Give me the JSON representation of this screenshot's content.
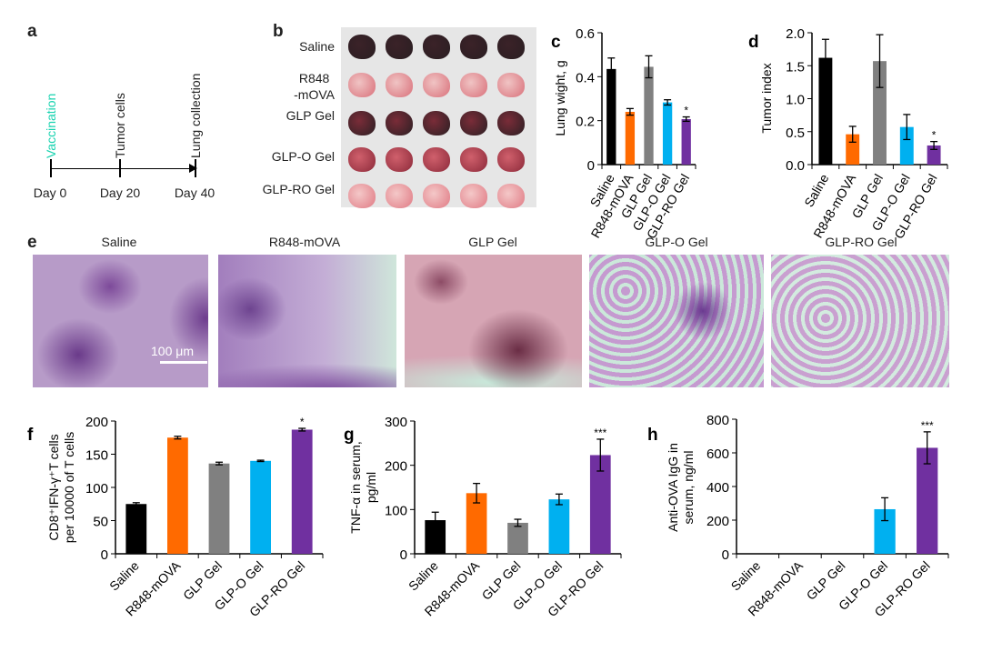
{
  "panels": {
    "a": {
      "letter": "a",
      "events": [
        "Vaccination",
        "Tumor cells",
        "Lung collection"
      ],
      "days": [
        "Day 0",
        "Day 20",
        "Day 40"
      ],
      "vaccination_color": "#19d3b0"
    },
    "b": {
      "letter": "b",
      "rows": [
        "Saline",
        "R848\n-mOVA",
        "GLP Gel",
        "GLP-O Gel",
        "GLP-RO Gel"
      ]
    },
    "e": {
      "letter": "e",
      "titles": [
        "Saline",
        "R848-mOVA",
        "GLP Gel",
        "GLP-O Gel",
        "GLP-RO Gel"
      ],
      "scale_bar": "100 μm"
    }
  },
  "colors": [
    "#000000",
    "#ff6a00",
    "#808080",
    "#00b0f0",
    "#7030a0"
  ],
  "chart_data": [
    {
      "id": "c",
      "letter": "c",
      "type": "bar",
      "categories": [
        "Saline",
        "R848-mOVA",
        "GLP Gel",
        "GLP-O Gel",
        "GLP-RO Gel"
      ],
      "values": [
        0.435,
        0.24,
        0.445,
        0.283,
        0.207
      ],
      "errors": [
        0.05,
        0.015,
        0.05,
        0.012,
        0.01
      ],
      "annotations": [
        "",
        "",
        "",
        "",
        "*"
      ],
      "ylabel": "Lung wight, g",
      "ylim": [
        0,
        0.6
      ],
      "yticks": [
        "0",
        "0.2",
        "0.4",
        "0.6"
      ],
      "ytick_values": [
        0,
        0.2,
        0.4,
        0.6
      ]
    },
    {
      "id": "d",
      "letter": "d",
      "type": "bar",
      "categories": [
        "Saline",
        "R848-mOVA",
        "GLP Gel",
        "GLP-O Gel",
        "GLP-RO Gel"
      ],
      "values": [
        1.62,
        0.46,
        1.57,
        0.57,
        0.29
      ],
      "errors": [
        0.28,
        0.12,
        0.4,
        0.19,
        0.06
      ],
      "annotations": [
        "",
        "",
        "",
        "",
        "*"
      ],
      "ylabel": "Tumor index",
      "ylim": [
        0,
        2.0
      ],
      "yticks": [
        "0.0",
        "0.5",
        "1.0",
        "1.5",
        "2.0"
      ],
      "ytick_values": [
        0,
        0.5,
        1,
        1.5,
        2
      ]
    },
    {
      "id": "f",
      "letter": "f",
      "type": "bar",
      "categories": [
        "Saline",
        "R848-mOVA",
        "GLP Gel",
        "GLP-O Gel",
        "GLP-RO Gel"
      ],
      "values": [
        75,
        175,
        136,
        140,
        187
      ],
      "errors": [
        2,
        2,
        2,
        1,
        2
      ],
      "annotations": [
        "",
        "",
        "",
        "",
        "*"
      ],
      "ylabel": "CD8⁺IFN-γ⁺T cells",
      "ylabel2": "per 10000 of T cells",
      "ylim": [
        0,
        200
      ],
      "yticks": [
        "0",
        "50",
        "100",
        "150",
        "200"
      ],
      "ytick_values": [
        0,
        50,
        100,
        150,
        200
      ]
    },
    {
      "id": "g",
      "letter": "g",
      "type": "bar",
      "categories": [
        "Saline",
        "R848-mOVA",
        "GLP Gel",
        "GLP-O Gel",
        "GLP-RO Gel"
      ],
      "values": [
        76,
        137,
        70,
        123,
        223
      ],
      "errors": [
        18,
        22,
        8,
        12,
        36
      ],
      "annotations": [
        "",
        "",
        "",
        "",
        "***"
      ],
      "ylabel": "TNF-α in serum,",
      "ylabel2": "pg/ml",
      "ylim": [
        0,
        300
      ],
      "yticks": [
        "0",
        "100",
        "200",
        "300"
      ],
      "ytick_values": [
        0,
        100,
        200,
        300
      ]
    },
    {
      "id": "h",
      "letter": "h",
      "type": "bar",
      "categories": [
        "Saline",
        "R848-mOVA",
        "GLP Gel",
        "GLP-O Gel",
        "GLP-RO Gel"
      ],
      "values": [
        0,
        0,
        0,
        265,
        630
      ],
      "errors": [
        0,
        0,
        0,
        68,
        95
      ],
      "annotations": [
        "",
        "",
        "",
        "",
        "***"
      ],
      "ylabel": "Anti-OVA IgG in",
      "ylabel2": "serum, ng/ml",
      "ylim": [
        0,
        800
      ],
      "yticks": [
        "0",
        "200",
        "400",
        "600",
        "800"
      ],
      "ytick_values": [
        0,
        200,
        400,
        600,
        800
      ]
    }
  ]
}
